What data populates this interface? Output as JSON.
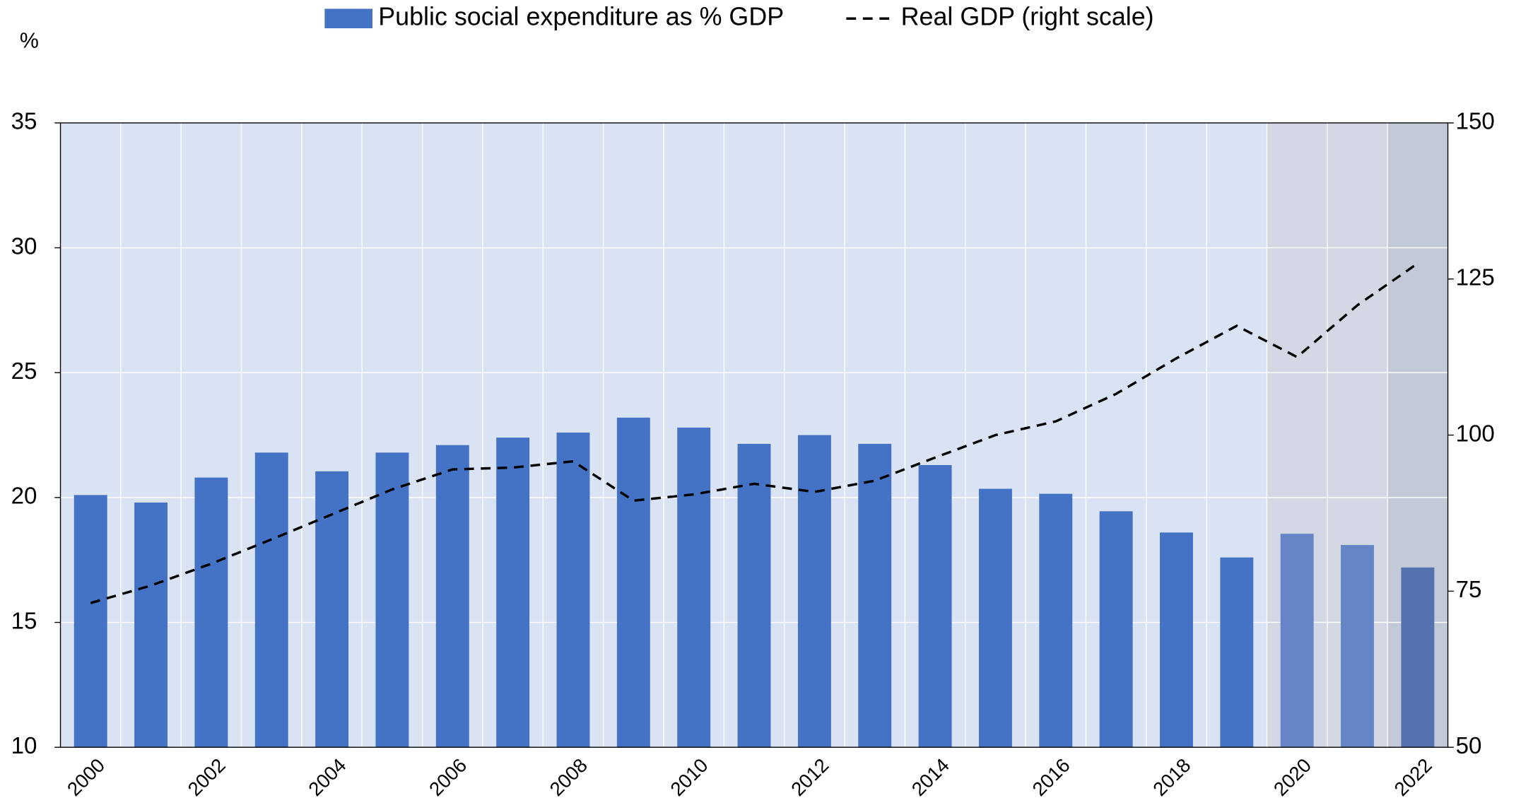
{
  "chart_data": {
    "type": "bar_line",
    "y_unit_label": "%",
    "categories": [
      "2000",
      null,
      "2002",
      null,
      "2004",
      null,
      "2006",
      null,
      "2008",
      null,
      "2010",
      null,
      "2012",
      null,
      "2014",
      null,
      "2016",
      null,
      "2018",
      null,
      "2020",
      null,
      "2022"
    ],
    "series": [
      {
        "name": "Public social expenditure as % GDP",
        "type": "bar",
        "axis": "y",
        "color": "#4472c4",
        "bar_colors": [
          "#4472c4",
          "#4472c4",
          "#4472c4",
          "#4472c4",
          "#4472c4",
          "#4472c4",
          "#4472c4",
          "#4472c4",
          "#4472c4",
          "#4472c4",
          "#4472c4",
          "#4472c4",
          "#4472c4",
          "#4472c4",
          "#4472c4",
          "#4472c4",
          "#4472c4",
          "#4472c4",
          "#4472c4",
          "#4472c4",
          "#6585c6",
          "#6585c6",
          "#5472b0"
        ],
        "values": [
          20.1,
          19.8,
          20.8,
          21.8,
          21.05,
          21.8,
          22.1,
          22.4,
          22.6,
          23.2,
          22.8,
          22.15,
          22.5,
          22.15,
          21.3,
          20.35,
          20.15,
          19.45,
          18.6,
          17.6,
          18.55,
          18.1,
          17.2
        ]
      },
      {
        "name": "Real GDP (right scale)",
        "type": "line",
        "axis": "y2",
        "color": "#000000",
        "dashed": true,
        "values": [
          73.1,
          75.9,
          79.4,
          83.3,
          87.3,
          91.3,
          94.5,
          94.8,
          95.8,
          89.5,
          90.5,
          92.2,
          90.9,
          92.7,
          96.4,
          100,
          102.2,
          106.6,
          112.3,
          117.5,
          112.5,
          120.8,
          127.5
        ]
      }
    ],
    "ylim": [
      10,
      35
    ],
    "yticks": [
      10,
      15,
      20,
      25,
      30,
      35
    ],
    "y2lim": [
      50,
      150
    ],
    "y2ticks": [
      50,
      75,
      100,
      125,
      150
    ],
    "grid": true,
    "plot_background": "#dae3f3",
    "shaded": [
      {
        "from": 20,
        "to": 21,
        "color": "#d3d8e4"
      },
      {
        "from": 22,
        "to": 22,
        "color": "#c3c9d7"
      }
    ],
    "legend": "top"
  }
}
